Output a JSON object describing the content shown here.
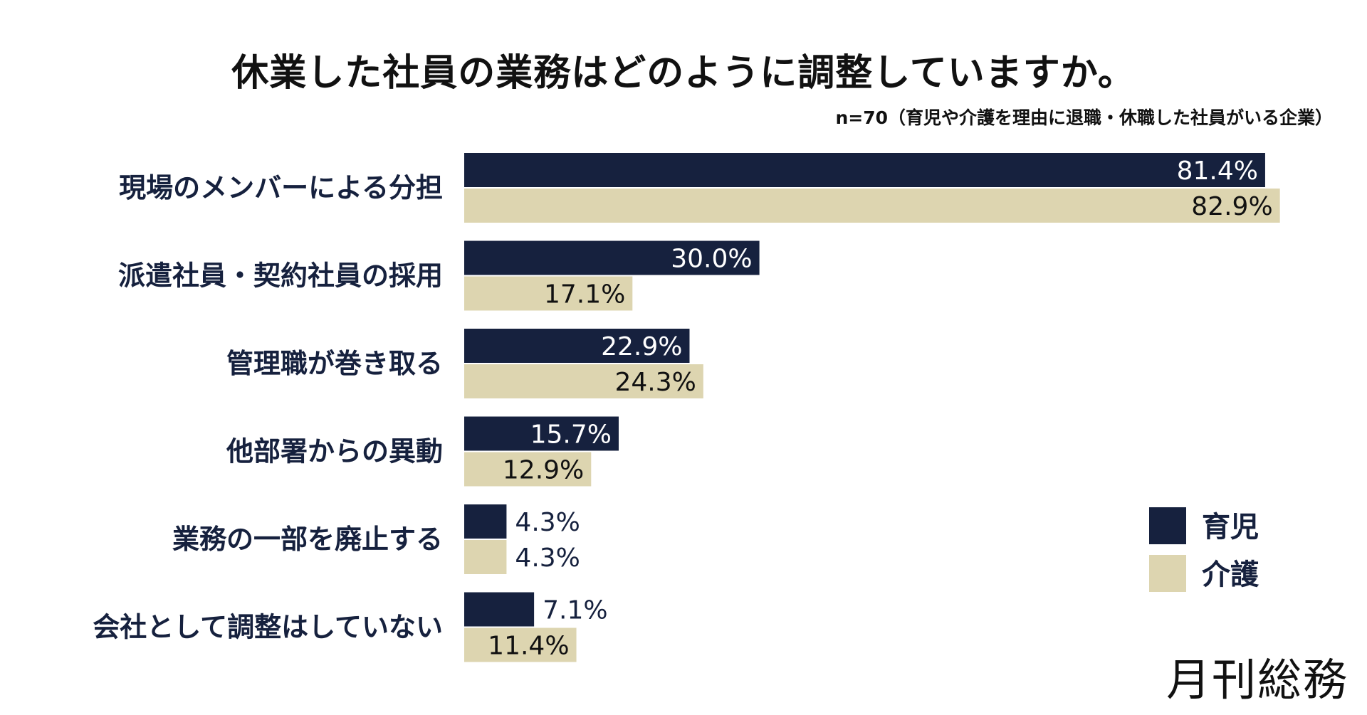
{
  "chart_data": {
    "type": "bar",
    "orientation": "horizontal",
    "title": "休業した社員の業務はどのように調整していますか。",
    "subtitle": "n=70（育児や介護を理由に退職・休職した社員がいる企業）",
    "categories": [
      "現場のメンバーによる分担",
      "派遣社員・契約社員の採用",
      "管理職が巻き取る",
      "他部署からの異動",
      "業務の一部を廃止する",
      "会社として調整はしていない"
    ],
    "series": [
      {
        "name": "育児",
        "color": "#16213e",
        "values": [
          81.4,
          30.0,
          22.9,
          15.7,
          4.3,
          7.1
        ]
      },
      {
        "name": "介護",
        "color": "#ddd5b0",
        "values": [
          82.9,
          17.1,
          24.3,
          12.9,
          4.3,
          11.4
        ]
      }
    ],
    "xlim": [
      0,
      100
    ],
    "unit": "%",
    "legend_position": "bottom-right"
  },
  "brand": "月刊総務"
}
